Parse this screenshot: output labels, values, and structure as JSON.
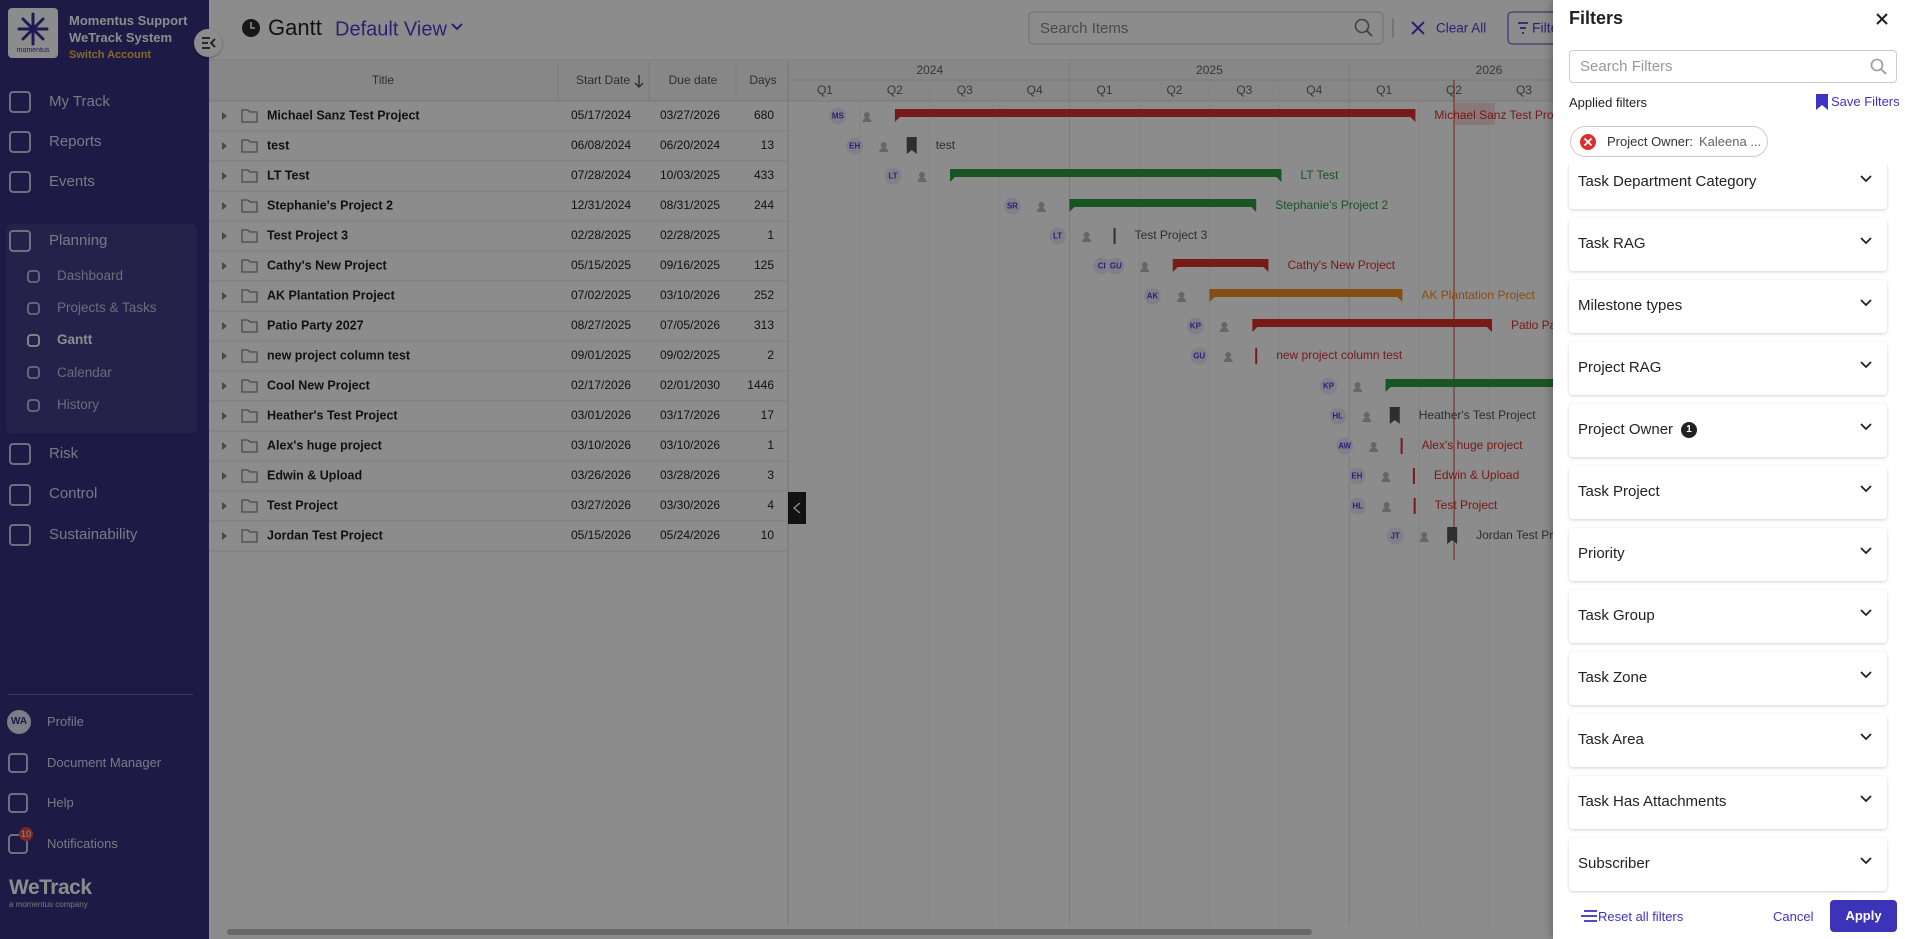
{
  "sidebar": {
    "logo_text": "momentus",
    "org_lines": [
      "Momentus Support",
      "WeTrack System"
    ],
    "switch_account": "Switch Account",
    "nav_top": [
      "My Track",
      "Reports",
      "Events"
    ],
    "planning": {
      "title": "Planning",
      "items": [
        "Dashboard",
        "Projects & Tasks",
        "Gantt",
        "Calendar",
        "History"
      ]
    },
    "nav_bottom": [
      "Risk",
      "Control",
      "Sustainability"
    ],
    "profile_initials": "WA",
    "footer": [
      "Profile",
      "Document Manager",
      "Help",
      "Notifications"
    ],
    "notifications_count": 10,
    "brand": "WeTrack",
    "brand_tagline": "a momentus company"
  },
  "header": {
    "title": "Gantt",
    "view": "Default View",
    "search_placeholder": "Search Items",
    "clear_all": "Clear All",
    "filters_button": "Filters"
  },
  "table": {
    "columns": [
      "Title",
      "Start Date",
      "Due date",
      "Days"
    ],
    "rows": [
      [
        "Michael Sanz Test Project",
        "05/17/2024",
        "03/27/2026",
        680
      ],
      [
        "test",
        "06/08/2024",
        "06/20/2024",
        13
      ],
      [
        "LT Test",
        "07/28/2024",
        "10/03/2025",
        433
      ],
      [
        "Stephanie's Project 2",
        "12/31/2024",
        "08/31/2025",
        244
      ],
      [
        "Test Project 3",
        "02/28/2025",
        "02/28/2025",
        1
      ],
      [
        "Cathy's New Project",
        "05/15/2025",
        "09/16/2025",
        125
      ],
      [
        "AK Plantation Project",
        "07/02/2025",
        "03/10/2026",
        252
      ],
      [
        "Patio Party 2027",
        "08/27/2025",
        "07/05/2026",
        313
      ],
      [
        "new project column test",
        "09/01/2025",
        "09/02/2025",
        2
      ],
      [
        "Cool New Project",
        "02/17/2026",
        "02/01/2030",
        1446
      ],
      [
        "Heather's Test Project",
        "03/01/2026",
        "03/17/2026",
        17
      ],
      [
        "Alex's huge project",
        "03/10/2026",
        "03/10/2026",
        1
      ],
      [
        "Edwin & Upload",
        "03/26/2026",
        "03/28/2026",
        3
      ],
      [
        "Test Project",
        "03/27/2026",
        "03/30/2026",
        4
      ],
      [
        "Jordan Test Project",
        "05/15/2026",
        "05/24/2026",
        10
      ]
    ]
  },
  "timeline": {
    "years": [
      2024,
      2025,
      2026
    ],
    "quarters": [
      "Q1",
      "Q2",
      "Q3",
      "Q4"
    ]
  },
  "gantt": {
    "owners": [
      [
        "MS"
      ],
      [
        "EH"
      ],
      [
        "LT"
      ],
      [
        "SR"
      ],
      [
        "LT"
      ],
      [
        "CI",
        "GU"
      ],
      [
        "AK"
      ],
      [
        "KP"
      ],
      [
        "GU"
      ],
      [
        "KP"
      ],
      [
        "HL"
      ],
      [
        "AW"
      ],
      [
        "EH"
      ],
      [
        "HL"
      ],
      [
        "JT"
      ]
    ],
    "kinds": [
      "bar",
      "milestone",
      "bar",
      "bar",
      "bar",
      "bar",
      "bar",
      "bar",
      "bar",
      "bar",
      "milestone",
      "bar",
      "bar",
      "bar",
      "milestone"
    ],
    "colors": [
      "#d9302c",
      "#555555",
      "#2e9b3e",
      "#2e9b3e",
      "#555555",
      "#d9302c",
      "#f0901e",
      "#d9302c",
      "#d9302c",
      "#2e9b3e",
      "#555555",
      "#d9302c",
      "#d9302c",
      "#d9302c",
      "#555555"
    ]
  },
  "filters": {
    "title": "Filters",
    "search_placeholder": "Search Filters",
    "applied_label": "Applied filters",
    "save_label": "Save Filters",
    "applied": [
      {
        "field": "Project Owner:",
        "value": "Kaleena ..."
      }
    ],
    "sections": [
      {
        "label": "Task Department Category"
      },
      {
        "label": "Task RAG"
      },
      {
        "label": "Milestone types"
      },
      {
        "label": "Project RAG"
      },
      {
        "label": "Project Owner",
        "count": 1
      },
      {
        "label": "Task Project"
      },
      {
        "label": "Priority"
      },
      {
        "label": "Task Group"
      },
      {
        "label": "Task Zone"
      },
      {
        "label": "Task Area"
      },
      {
        "label": "Task Has Attachments"
      },
      {
        "label": "Subscriber"
      }
    ],
    "reset_label": "Reset all filters",
    "cancel_label": "Cancel",
    "apply_label": "Apply"
  }
}
